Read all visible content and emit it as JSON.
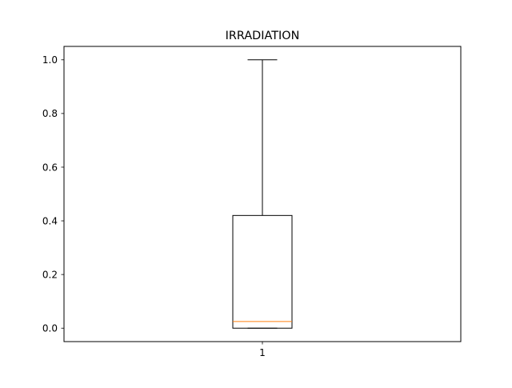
{
  "chart_data": {
    "type": "box",
    "title": "IRRADIATION",
    "xlabel": "",
    "ylabel": "",
    "categories": [
      "1"
    ],
    "series": [
      {
        "whisker_low": 0.0,
        "q1": 0.0,
        "median": 0.025,
        "q3": 0.42,
        "whisker_high": 1.0
      }
    ],
    "ylim": [
      -0.05,
      1.05
    ],
    "y_ticks": [
      0.0,
      0.2,
      0.4,
      0.6,
      0.8,
      1.0
    ],
    "y_tick_labels": [
      "0.0",
      "0.2",
      "0.4",
      "0.6",
      "0.8",
      "1.0"
    ],
    "grid": false,
    "colors": {
      "box": "#000000",
      "median": "#ff7f0e",
      "whisker": "#000000"
    }
  }
}
